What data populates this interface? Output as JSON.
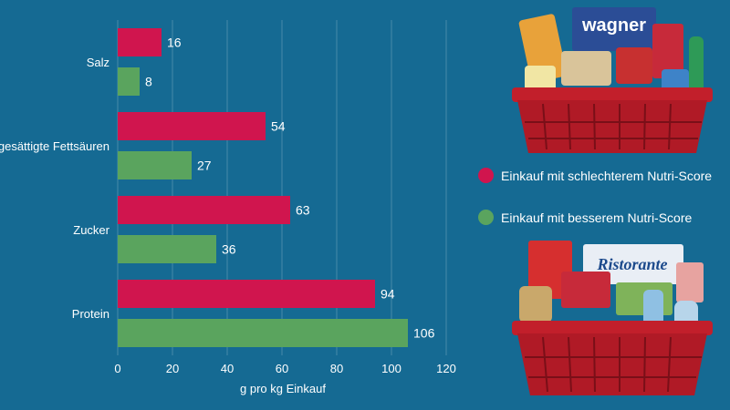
{
  "chart_data": {
    "type": "bar",
    "orientation": "horizontal",
    "categories": [
      "Salz",
      "gesättigte Fettsäuren",
      "Zucker",
      "Protein"
    ],
    "series": [
      {
        "name": "Einkauf mit schlechterem Nutri-Score",
        "color": "#d0154e",
        "values": [
          16,
          54,
          63,
          94
        ]
      },
      {
        "name": "Einkauf mit besserem Nutri-Score",
        "color": "#5aa45e",
        "values": [
          8,
          27,
          36,
          106
        ]
      }
    ],
    "xlabel": "g pro kg Einkauf",
    "xlim": [
      0,
      120
    ],
    "xticks": [
      0,
      20,
      40,
      60,
      80,
      100,
      120
    ],
    "grid": true,
    "legend_position": "right"
  },
  "images": {
    "top_basket": {
      "icon": "shopping-basket-icon",
      "brand_text": "wagner"
    },
    "bottom_basket": {
      "icon": "shopping-basket-icon",
      "brand_text": "Ristorante"
    }
  }
}
